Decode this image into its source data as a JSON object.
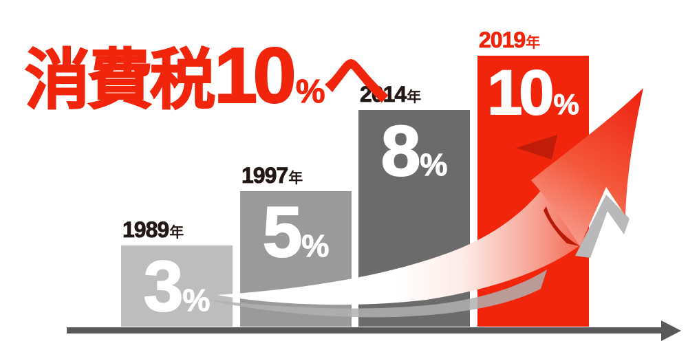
{
  "title": {
    "tax_label": "消費税",
    "rate_number": "10",
    "percent_sign": "%",
    "direction_suffix": "へ"
  },
  "colors": {
    "accent_red": "#f0250b",
    "dark_red": "#c11c0a",
    "bar_1989": "#bdbdbe",
    "bar_1997": "#9a9a9b",
    "bar_2014": "#6b6b6c",
    "bar_2019": "#f0250b",
    "axis_gray": "#595757",
    "year_label_dark": "#231815",
    "shadow_gray": "#b9b9ba",
    "value_text": "#ffffff"
  },
  "chart_data": {
    "type": "bar",
    "title": "消費税10%へ",
    "categories": [
      "1989年",
      "1997年",
      "2014年",
      "2019年"
    ],
    "values": [
      3,
      5,
      8,
      10
    ],
    "unit": "%",
    "xlabel": "",
    "ylabel": "",
    "ylim": [
      0,
      10
    ],
    "grid": false,
    "legend": false,
    "bars": [
      {
        "year": "1989",
        "year_unit": "年",
        "value": "3",
        "percent": "%"
      },
      {
        "year": "1997",
        "year_unit": "年",
        "value": "5",
        "percent": "%"
      },
      {
        "year": "2014",
        "year_unit": "年",
        "value": "8",
        "percent": "%"
      },
      {
        "year": "2019",
        "year_unit": "年",
        "value": "10",
        "percent": "%"
      }
    ],
    "annotations": {
      "trend_arrow": "upward-curved-swoosh-arrow",
      "x_axis": "right-pointing-arrow-axis"
    }
  }
}
